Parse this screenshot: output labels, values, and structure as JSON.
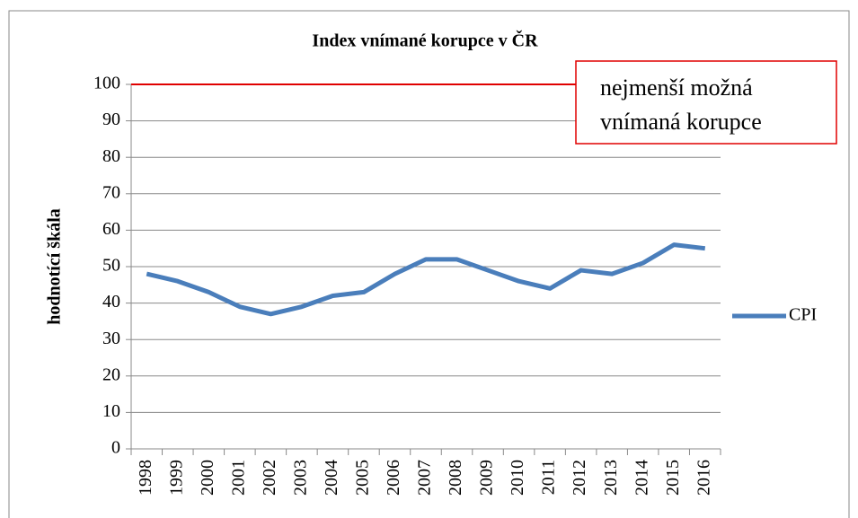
{
  "chart_data": {
    "type": "line",
    "title": "Index vnímané korupce v ČR",
    "y_label": "hodnotící škála",
    "categories": [
      "1998",
      "1999",
      "2000",
      "2001",
      "2002",
      "2003",
      "2004",
      "2005",
      "2006",
      "2007",
      "2008",
      "2009",
      "2010",
      "2011",
      "2012",
      "2013",
      "2014",
      "2015",
      "2016"
    ],
    "series": [
      {
        "name": "CPI",
        "color": "#4a7ebb",
        "values": [
          48,
          46,
          43,
          39,
          37,
          39,
          42,
          43,
          48,
          52,
          52,
          49,
          46,
          44,
          49,
          48,
          51,
          56,
          55
        ]
      }
    ],
    "ylim": [
      0,
      100
    ],
    "yticks": [
      0,
      10,
      20,
      30,
      40,
      50,
      60,
      70,
      80,
      90,
      100
    ],
    "grid": true,
    "legend": "right",
    "reference_line": {
      "value": 100,
      "color": "#e00000"
    },
    "annotation": [
      "nejmenší možná",
      "vnímaná korupce"
    ]
  }
}
